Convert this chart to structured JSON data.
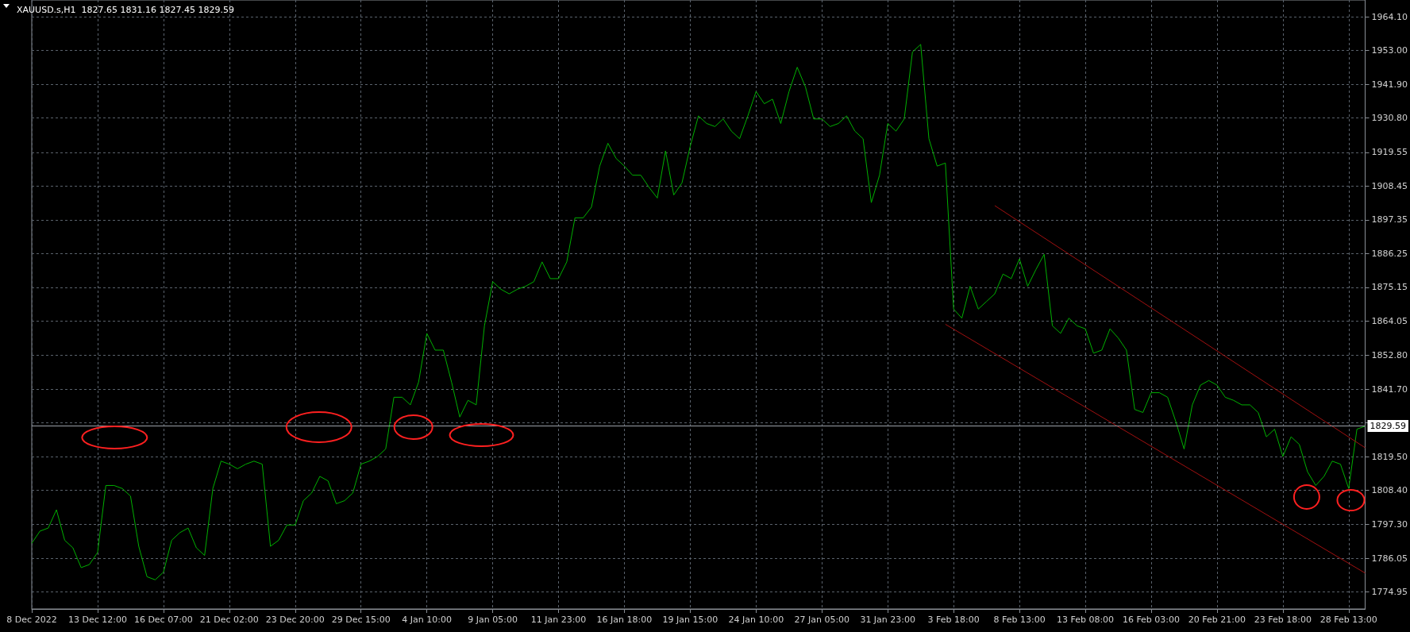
{
  "chart_data": {
    "type": "line",
    "title": "XAUUSD.s,H1  1827.65 1831.16 1827.45 1829.59",
    "categories": [
      "8 Dec 2022",
      null,
      null,
      null,
      null,
      null,
      null,
      null,
      "13 Dec 12:00",
      null,
      null,
      null,
      null,
      null,
      null,
      null,
      "16 Dec 07:00",
      null,
      null,
      null,
      null,
      null,
      null,
      null,
      "21 Dec 02:00",
      null,
      null,
      null,
      null,
      null,
      null,
      null,
      "23 Dec 20:00",
      null,
      null,
      null,
      null,
      null,
      null,
      null,
      "29 Dec 15:00",
      null,
      null,
      null,
      null,
      null,
      null,
      null,
      "4 Jan 10:00",
      null,
      null,
      null,
      null,
      null,
      null,
      null,
      "9 Jan 05:00",
      null,
      null,
      null,
      null,
      null,
      null,
      null,
      "11 Jan 23:00",
      null,
      null,
      null,
      null,
      null,
      null,
      null,
      "16 Jan 18:00",
      null,
      null,
      null,
      null,
      null,
      null,
      null,
      "19 Jan 15:00",
      null,
      null,
      null,
      null,
      null,
      null,
      null,
      "24 Jan 10:00",
      null,
      null,
      null,
      null,
      null,
      null,
      null,
      "27 Jan 05:00",
      null,
      null,
      null,
      null,
      null,
      null,
      null,
      "31 Jan 23:00",
      null,
      null,
      null,
      null,
      null,
      null,
      null,
      "3 Feb 18:00",
      null,
      null,
      null,
      null,
      null,
      null,
      null,
      "8 Feb 13:00",
      null,
      null,
      null,
      null,
      null,
      null,
      null,
      "13 Feb 08:00",
      null,
      null,
      null,
      null,
      null,
      null,
      null,
      "16 Feb 03:00",
      null,
      null,
      null,
      null,
      null,
      null,
      null,
      "20 Feb 21:00",
      null,
      null,
      null,
      null,
      null,
      null,
      null,
      "23 Feb 18:00",
      null,
      null,
      null,
      null,
      null,
      null,
      null,
      "28 Feb 13:00",
      null,
      null
    ],
    "series": [
      {
        "color": "#00b000",
        "values": [
          1791,
          1795,
          1796,
          1802,
          1792,
          1789.5,
          1783,
          1784,
          1788,
          1810,
          1810,
          1809,
          1806.5,
          1790,
          1780,
          1779,
          1781.5,
          1792,
          1794.5,
          1796,
          1789.5,
          1787,
          1809,
          1818,
          1817,
          1815.5,
          1817,
          1818,
          1817,
          1790,
          1792,
          1797,
          1797,
          1805,
          1807.5,
          1813,
          1811.5,
          1804,
          1805,
          1807.5,
          1817,
          1818,
          1819.5,
          1822,
          1839,
          1839,
          1836.5,
          1844,
          1860,
          1854.5,
          1854.5,
          1844,
          1832.5,
          1838,
          1836.5,
          1862.5,
          1877,
          1874.5,
          1873,
          1874.5,
          1875.5,
          1877,
          1883.5,
          1878,
          1878,
          1883.5,
          1898,
          1898,
          1901.5,
          1915,
          1922.5,
          1917.5,
          1915,
          1912,
          1912,
          1908,
          1904.5,
          1920,
          1905.5,
          1909.5,
          1921.5,
          1931.5,
          1929,
          1928,
          1930.5,
          1926.5,
          1924,
          1931.5,
          1939.5,
          1935.5,
          1937,
          1929,
          1939.5,
          1947.5,
          1941,
          1930.5,
          1930.5,
          1928,
          1929,
          1931.5,
          1926.5,
          1924,
          1903,
          1912,
          1929,
          1926.5,
          1930.5,
          1952.5,
          1955,
          1924,
          1915,
          1916,
          1868,
          1865,
          1875.5,
          1868,
          1870.5,
          1873,
          1879.5,
          1878,
          1884.5,
          1875.5,
          1881,
          1886,
          1862.5,
          1860,
          1865,
          1862.5,
          1861.5,
          1853.5,
          1854.5,
          1861.5,
          1858.5,
          1854.5,
          1835,
          1834,
          1840.5,
          1840.5,
          1839,
          1831,
          1822,
          1836.5,
          1843,
          1844.5,
          1843,
          1839,
          1838,
          1836.5,
          1836.5,
          1834,
          1826,
          1828.5,
          1819.5,
          1826,
          1823.5,
          1814.5,
          1810,
          1813,
          1818,
          1817,
          1809,
          1828.5,
          1829.5
        ]
      },
      {
        "color": "#a01010",
        "values": [
          null,
          null,
          null,
          null,
          null,
          null,
          null,
          null,
          null,
          null,
          null,
          null,
          null,
          null,
          null,
          null,
          null,
          null,
          null,
          null,
          null,
          null,
          null,
          null,
          null,
          null,
          null,
          null,
          null,
          null,
          null,
          null,
          null,
          null,
          null,
          null,
          null,
          null,
          null,
          null,
          null,
          null,
          null,
          null,
          null,
          null,
          null,
          null,
          null,
          null,
          null,
          null,
          null,
          null,
          null,
          null,
          null,
          null,
          null,
          null,
          null,
          null,
          null,
          null,
          null,
          null,
          null,
          null,
          null,
          null,
          null,
          null,
          null,
          null,
          null,
          null,
          null,
          null,
          null,
          null,
          null,
          null,
          null,
          null,
          null,
          null,
          null,
          null,
          null,
          null,
          null,
          null,
          null,
          null,
          null,
          null,
          null,
          null,
          null,
          null,
          null,
          null,
          null,
          null,
          null,
          null,
          null,
          null,
          null,
          null,
          null,
          null,
          null,
          null,
          null,
          null,
          null,
          1902,
          null,
          null,
          null,
          null,
          null,
          null,
          null,
          null,
          null,
          null,
          null,
          null,
          null,
          null,
          null,
          null,
          null,
          null,
          null,
          null,
          null,
          null,
          null,
          null,
          null,
          null,
          null,
          null,
          null,
          null,
          null,
          null,
          null,
          null,
          null,
          null,
          null,
          null,
          null,
          null,
          null,
          null,
          null,
          null,
          1822.4
        ]
      },
      {
        "color": "#a01010",
        "values": [
          null,
          null,
          null,
          null,
          null,
          null,
          null,
          null,
          null,
          null,
          null,
          null,
          null,
          null,
          null,
          null,
          null,
          null,
          null,
          null,
          null,
          null,
          null,
          null,
          null,
          null,
          null,
          null,
          null,
          null,
          null,
          null,
          null,
          null,
          null,
          null,
          null,
          null,
          null,
          null,
          null,
          null,
          null,
          null,
          null,
          null,
          null,
          null,
          null,
          null,
          null,
          null,
          null,
          null,
          null,
          null,
          null,
          null,
          null,
          null,
          null,
          null,
          null,
          null,
          null,
          null,
          null,
          null,
          null,
          null,
          null,
          null,
          null,
          null,
          null,
          null,
          null,
          null,
          null,
          null,
          null,
          null,
          null,
          null,
          null,
          null,
          null,
          null,
          null,
          null,
          null,
          null,
          null,
          null,
          null,
          null,
          null,
          null,
          null,
          null,
          null,
          null,
          null,
          null,
          null,
          null,
          null,
          null,
          null,
          null,
          null,
          1863,
          null,
          null,
          null,
          null,
          null,
          null,
          null,
          null,
          null,
          null,
          null,
          null,
          null,
          null,
          null,
          null,
          null,
          null,
          null,
          null,
          null,
          null,
          null,
          null,
          null,
          null,
          null,
          null,
          null,
          null,
          null,
          null,
          null,
          null,
          null,
          null,
          null,
          null,
          null,
          null,
          null,
          null,
          null,
          null,
          null,
          null,
          null,
          null,
          null,
          null,
          1781.2
        ]
      }
    ],
    "ylim": [
      1769.4,
      1969.6
    ],
    "yticks": [
      {
        "value": 1774.95,
        "label": "1774.95"
      },
      {
        "value": 1786.05,
        "label": "1786.05"
      },
      {
        "value": 1797.3,
        "label": "1797.30"
      },
      {
        "value": 1808.4,
        "label": "1808.40"
      },
      {
        "value": 1819.5,
        "label": "1819.50"
      },
      {
        "value": 1830.6,
        "label": null
      },
      {
        "value": 1841.7,
        "label": "1841.70"
      },
      {
        "value": 1852.8,
        "label": "1852.80"
      },
      {
        "value": 1864.05,
        "label": "1864.05"
      },
      {
        "value": 1875.15,
        "label": "1875.15"
      },
      {
        "value": 1886.25,
        "label": "1886.25"
      },
      {
        "value": 1897.35,
        "label": "1897.35"
      },
      {
        "value": 1908.45,
        "label": "1908.45"
      },
      {
        "value": 1919.55,
        "label": "1919.55"
      },
      {
        "value": 1930.8,
        "label": "1930.80"
      },
      {
        "value": 1941.9,
        "label": "1941.90"
      },
      {
        "value": 1953,
        "label": "1953.00"
      },
      {
        "value": 1964.1,
        "label": "1964.10"
      }
    ],
    "ref_lines": [
      {
        "axis": "y",
        "value": 1829.59,
        "label": "1829.59",
        "color": "#9aa0a8"
      }
    ],
    "grid": true,
    "marker": "none"
  }
}
